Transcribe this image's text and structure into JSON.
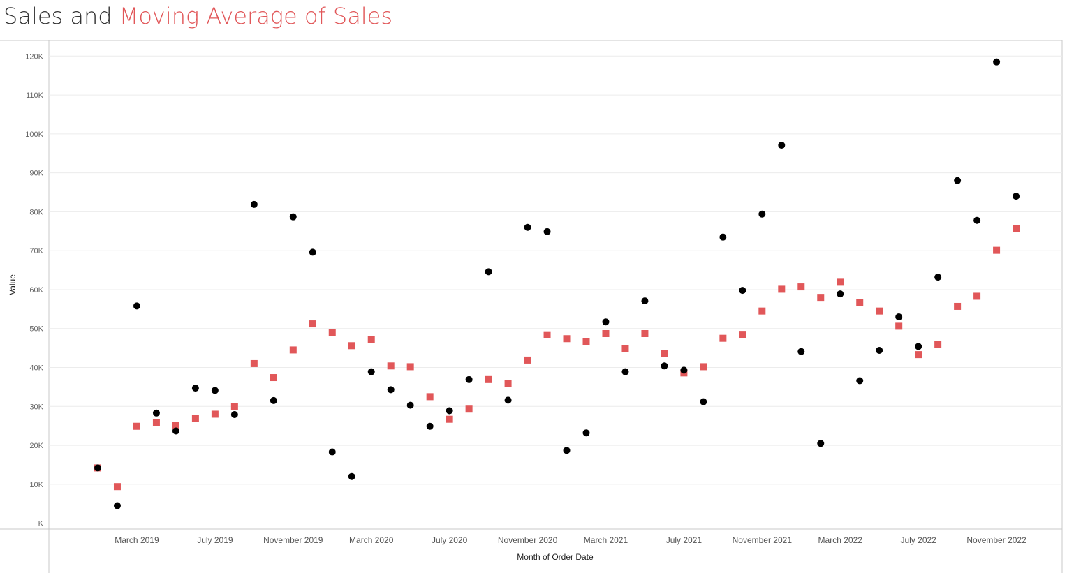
{
  "title": {
    "part1": "Sales and",
    "part2": "Moving Average of Sales"
  },
  "colors": {
    "sales": "#000000",
    "moving_average": "#e15759",
    "title_part1": "#333333",
    "title_part2": "#e15759",
    "grid": "#ececec",
    "axis": "#c8c8c8"
  },
  "chart_data": {
    "type": "scatter",
    "xlabel": "Month of Order Date",
    "ylabel": "Value",
    "ylim": [
      -1500,
      124000
    ],
    "y_ticks": [
      {
        "value": 0,
        "label": "K"
      },
      {
        "value": 10000,
        "label": "10K"
      },
      {
        "value": 20000,
        "label": "20K"
      },
      {
        "value": 30000,
        "label": "30K"
      },
      {
        "value": 40000,
        "label": "40K"
      },
      {
        "value": 50000,
        "label": "50K"
      },
      {
        "value": 60000,
        "label": "60K"
      },
      {
        "value": 70000,
        "label": "70K"
      },
      {
        "value": 80000,
        "label": "80K"
      },
      {
        "value": 90000,
        "label": "90K"
      },
      {
        "value": 100000,
        "label": "100K"
      },
      {
        "value": 110000,
        "label": "110K"
      },
      {
        "value": 120000,
        "label": "120K"
      }
    ],
    "x_tick_labels": [
      {
        "month": "2019-03",
        "label": "March 2019"
      },
      {
        "month": "2019-07",
        "label": "July 2019"
      },
      {
        "month": "2019-11",
        "label": "November 2019"
      },
      {
        "month": "2020-03",
        "label": "March 2020"
      },
      {
        "month": "2020-07",
        "label": "July 2020"
      },
      {
        "month": "2020-11",
        "label": "November 2020"
      },
      {
        "month": "2021-03",
        "label": "March 2021"
      },
      {
        "month": "2021-07",
        "label": "July 2021"
      },
      {
        "month": "2021-11",
        "label": "November 2021"
      },
      {
        "month": "2022-03",
        "label": "March 2022"
      },
      {
        "month": "2022-07",
        "label": "July 2022"
      },
      {
        "month": "2022-11",
        "label": "November 2022"
      }
    ],
    "months": [
      "2019-01",
      "2019-02",
      "2019-03",
      "2019-04",
      "2019-05",
      "2019-06",
      "2019-07",
      "2019-08",
      "2019-09",
      "2019-10",
      "2019-11",
      "2019-12",
      "2020-01",
      "2020-02",
      "2020-03",
      "2020-04",
      "2020-05",
      "2020-06",
      "2020-07",
      "2020-08",
      "2020-09",
      "2020-10",
      "2020-11",
      "2020-12",
      "2021-01",
      "2021-02",
      "2021-03",
      "2021-04",
      "2021-05",
      "2021-06",
      "2021-07",
      "2021-08",
      "2021-09",
      "2021-10",
      "2021-11",
      "2021-12",
      "2022-01",
      "2022-02",
      "2022-03",
      "2022-04",
      "2022-05",
      "2022-06",
      "2022-07",
      "2022-08",
      "2022-09",
      "2022-10",
      "2022-11",
      "2022-12"
    ],
    "series": [
      {
        "name": "Sales",
        "marker": "circle",
        "values": [
          14200,
          4500,
          55800,
          28300,
          23700,
          34700,
          34100,
          27900,
          81900,
          31500,
          78700,
          69600,
          18300,
          12000,
          38900,
          34300,
          30300,
          24900,
          28900,
          36900,
          64600,
          31600,
          76000,
          74900,
          18700,
          23200,
          51700,
          38900,
          57100,
          40400,
          39300,
          31200,
          73500,
          59800,
          79400,
          97100,
          44100,
          20500,
          58900,
          36600,
          44400,
          53000,
          45400,
          63200,
          88000,
          77800,
          118500,
          84000
        ]
      },
      {
        "name": "Moving Average of Sales",
        "marker": "square",
        "values": [
          14200,
          9400,
          24900,
          25800,
          25200,
          26900,
          28000,
          29900,
          41000,
          37400,
          44500,
          51200,
          48900,
          45600,
          47200,
          40400,
          40200,
          32500,
          26700,
          29300,
          36900,
          35800,
          41900,
          48400,
          47400,
          46600,
          48700,
          44900,
          48700,
          43600,
          38600,
          40200,
          47500,
          48500,
          54500,
          60100,
          60700,
          58000,
          61900,
          56600,
          54500,
          50600,
          43300,
          46000,
          55700,
          58300,
          70100,
          75700
        ]
      }
    ]
  }
}
